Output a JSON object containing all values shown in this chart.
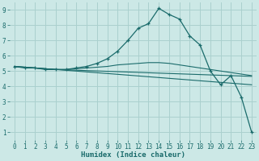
{
  "xlabel": "Humidex (Indice chaleur)",
  "bg_color": "#cce8e6",
  "grid_color": "#aad0ce",
  "line_color": "#1a6b6b",
  "xlim": [
    -0.5,
    23.5
  ],
  "ylim": [
    0.5,
    9.5
  ],
  "xticks": [
    0,
    1,
    2,
    3,
    4,
    5,
    6,
    7,
    8,
    9,
    10,
    11,
    12,
    13,
    14,
    15,
    16,
    17,
    18,
    19,
    20,
    21,
    22,
    23
  ],
  "yticks": [
    1,
    2,
    3,
    4,
    5,
    6,
    7,
    8,
    9
  ],
  "line1_x": [
    0,
    1,
    2,
    3,
    4,
    5,
    6,
    7,
    8,
    9,
    10,
    11,
    12,
    13,
    14,
    15,
    16,
    17,
    18,
    19,
    20,
    21,
    22,
    23
  ],
  "line1_y": [
    5.3,
    5.2,
    5.2,
    5.1,
    5.1,
    5.1,
    5.2,
    5.3,
    5.5,
    5.8,
    6.3,
    7.0,
    7.8,
    8.1,
    9.1,
    8.7,
    8.4,
    7.3,
    6.7,
    5.0,
    4.1,
    4.7,
    3.3,
    1.0
  ],
  "line2_x": [
    0,
    4,
    5,
    6,
    7,
    8,
    9,
    10,
    11,
    12,
    13,
    14,
    15,
    16,
    17,
    18,
    19,
    20,
    21,
    22,
    23
  ],
  "line2_y": [
    5.3,
    5.1,
    5.1,
    5.15,
    5.2,
    5.25,
    5.3,
    5.4,
    5.45,
    5.5,
    5.55,
    5.55,
    5.5,
    5.4,
    5.3,
    5.2,
    5.1,
    5.0,
    4.9,
    4.8,
    4.7
  ],
  "line3_x": [
    0,
    4,
    23
  ],
  "line3_y": [
    5.3,
    5.1,
    4.65
  ],
  "line4_x": [
    0,
    4,
    23
  ],
  "line4_y": [
    5.3,
    5.1,
    4.1
  ],
  "xlabel_fontsize": 6.5,
  "tick_fontsize": 5.5,
  "ylabel_fontsize": 6.5
}
